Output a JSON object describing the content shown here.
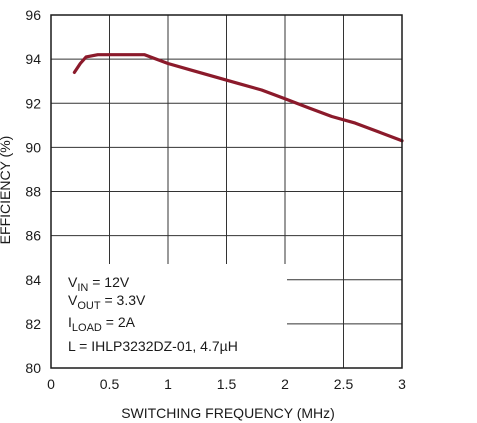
{
  "chart_data": {
    "type": "line",
    "xlabel": "SWITCHING FREQUENCY (MHz)",
    "ylabel": "EFFICIENCY (%)",
    "xlim": [
      0,
      3
    ],
    "ylim": [
      80,
      96
    ],
    "xticks": [
      0,
      0.5,
      1,
      1.5,
      2,
      2.5,
      3
    ],
    "xtick_labels": [
      "0",
      "0.5",
      "1",
      "1.5",
      "2",
      "2.5",
      "3"
    ],
    "yticks": [
      80,
      82,
      84,
      86,
      88,
      90,
      92,
      94,
      96
    ],
    "ytick_labels": [
      "80",
      "82",
      "84",
      "86",
      "88",
      "90",
      "92",
      "94",
      "96"
    ],
    "grid": true,
    "color": "#8b1a2b",
    "series": [
      {
        "x": [
          0.2,
          0.25,
          0.3,
          0.4,
          0.5,
          0.6,
          0.7,
          0.8,
          1.0,
          1.2,
          1.4,
          1.6,
          1.8,
          2.0,
          2.2,
          2.4,
          2.6,
          2.8,
          3.0
        ],
        "y": [
          93.4,
          93.8,
          94.1,
          94.2,
          94.2,
          94.2,
          94.2,
          94.2,
          93.8,
          93.5,
          93.2,
          92.9,
          92.6,
          92.2,
          91.8,
          91.4,
          91.1,
          90.7,
          90.3
        ]
      }
    ],
    "annotation": {
      "vin": {
        "pre": "V",
        "sub": "IN",
        "post": " = 12V"
      },
      "vout": {
        "pre": "V",
        "sub": "OUT",
        "post": " = 3.3V"
      },
      "iload": {
        "pre": "I",
        "sub": "LOAD",
        "post": " = 2A"
      },
      "inductor": "L = IHLP3232DZ-01, 4.7µH"
    }
  }
}
